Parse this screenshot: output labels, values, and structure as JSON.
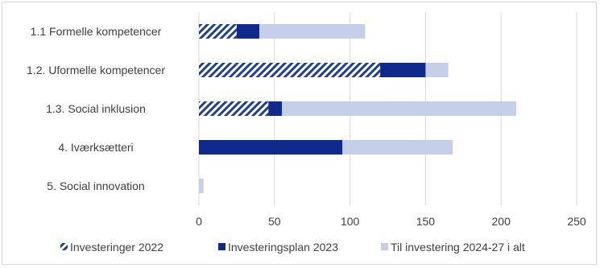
{
  "chart_data": {
    "type": "bar",
    "orientation": "horizontal",
    "stacked": true,
    "title": "",
    "xlabel": "",
    "ylabel": "",
    "xlim": [
      0,
      250
    ],
    "ticks": [
      0,
      50,
      100,
      150,
      200,
      250
    ],
    "grid": true,
    "legend_position": "bottom",
    "categories": [
      "1.1 Formelle kompetencer",
      "1.2. Uformelle kompetencer",
      "1.3. Social inklusion",
      "4. Iværksætteri",
      "5. Social innovation"
    ],
    "series": [
      {
        "name": "Investeringer 2022",
        "color": "#1f3d99",
        "pattern": "hatch",
        "values": [
          25,
          120,
          46,
          0,
          0
        ]
      },
      {
        "name": "Investeringsplan 2023",
        "color": "#0d2a8c",
        "pattern": "solid",
        "values": [
          15,
          30,
          9,
          95,
          0
        ]
      },
      {
        "name": "Til investering 2024-27 i alt",
        "color": "#c5cfe9",
        "pattern": "solid",
        "values": [
          70,
          15,
          155,
          73,
          3
        ]
      }
    ]
  }
}
